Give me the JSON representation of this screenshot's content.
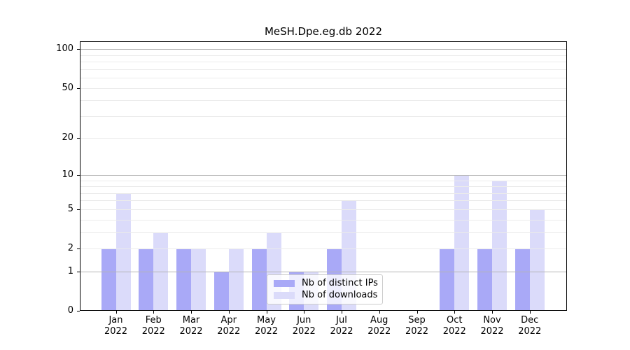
{
  "title": "MeSH.Dpe.eg.db 2022",
  "chart_data": {
    "type": "bar",
    "title": "MeSH.Dpe.eg.db 2022",
    "categories": [
      "Jan",
      "Feb",
      "Mar",
      "Apr",
      "May",
      "Jun",
      "Jul",
      "Aug",
      "Sep",
      "Oct",
      "Nov",
      "Dec"
    ],
    "category_year": "2022",
    "series": [
      {
        "name": "Nb of distinct IPs",
        "color": "#a9a9f7",
        "values": [
          2,
          2,
          2,
          1,
          2,
          1,
          2,
          0,
          0,
          2,
          2,
          2
        ]
      },
      {
        "name": "Nb of downloads",
        "color": "#dbdbfa",
        "values": [
          7,
          3,
          2,
          2,
          3,
          1,
          6,
          0,
          0,
          10,
          9,
          5
        ]
      }
    ],
    "xlabel": "",
    "ylabel": "",
    "yscale": "log1p",
    "ylim": [
      0,
      115
    ],
    "yticks": [
      0,
      1,
      2,
      5,
      10,
      20,
      50,
      100
    ],
    "major_gridlines": [
      1,
      10,
      100
    ],
    "minor_gridlines": [
      2,
      3,
      4,
      5,
      6,
      7,
      8,
      9,
      20,
      30,
      40,
      50,
      60,
      70,
      80,
      90
    ],
    "grid": true,
    "legend_position": "lower-center",
    "legend": [
      "Nb of distinct IPs",
      "Nb of downloads"
    ]
  },
  "colors": {
    "background": "#ffffff",
    "axis": "#000000",
    "grid_major": "#b3b3b3",
    "grid_minor": "#ebebeb",
    "bar_ips": "#a9a9f7",
    "bar_downloads": "#dbdbfa",
    "legend_border": "#cccccc"
  }
}
